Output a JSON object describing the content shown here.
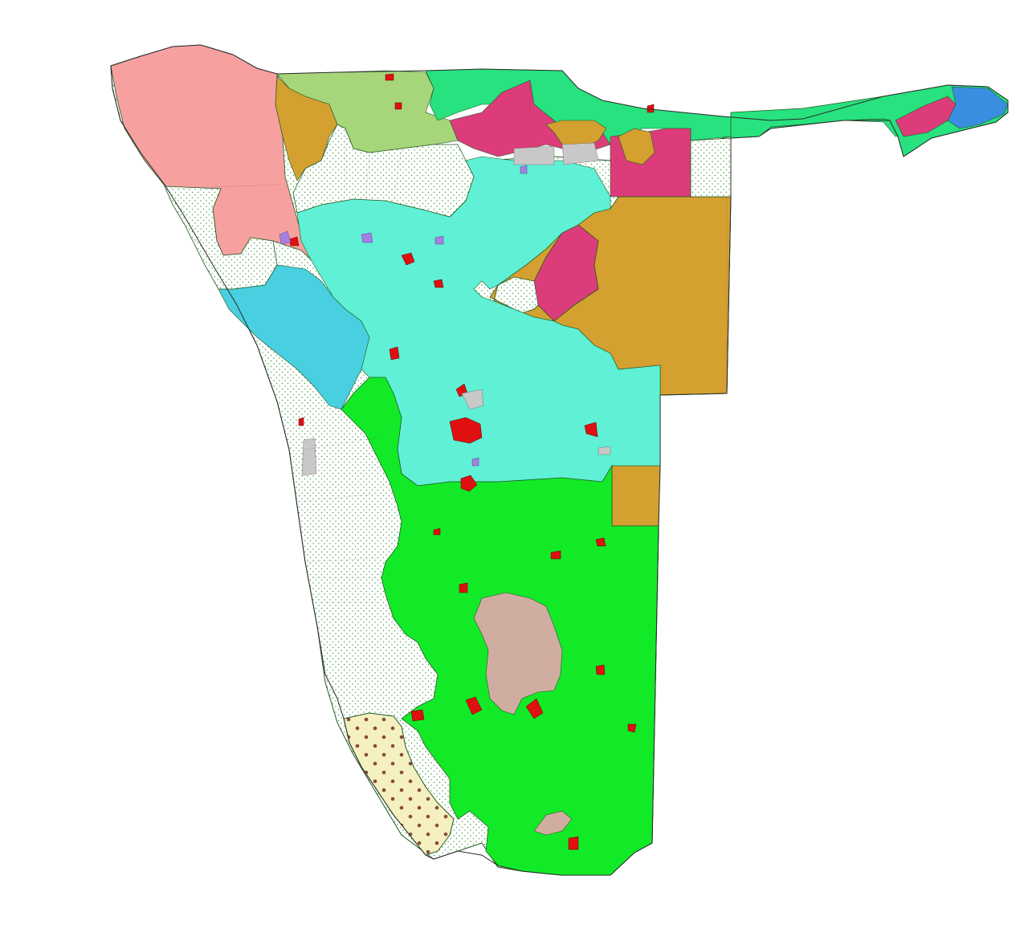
{
  "map": {
    "colors": {
      "northwest_pink": "#f7a0a0",
      "north_olive": "#a7d57a",
      "north_emerald": "#27e27f",
      "magenta": "#dc3c7a",
      "ochre": "#d4a030",
      "turquoise": "#5ff0d5",
      "sky_blue": "#48cfe0",
      "bright_green": "#12ea28",
      "taupe": "#cfada0",
      "cream_dotted": "#f4f0c0",
      "blue_east": "#3a8ee0",
      "urban_red": "#e01010",
      "lavender": "#a680e0",
      "gray": "#c8c8c8",
      "reserve_white": "#ffffff",
      "reserve_dot": "#3a9a3a",
      "dot_brown": "#8a4a3a"
    },
    "layers": [
      "northwest-region",
      "north-olive-region",
      "north-emerald-region",
      "northeast-strip",
      "magenta-regions",
      "ochre-regions",
      "central-turquoise-region",
      "west-sky-region",
      "south-green-region",
      "taupe-highlands",
      "southwest-dotted-region",
      "protected-areas",
      "urban-spots"
    ]
  }
}
